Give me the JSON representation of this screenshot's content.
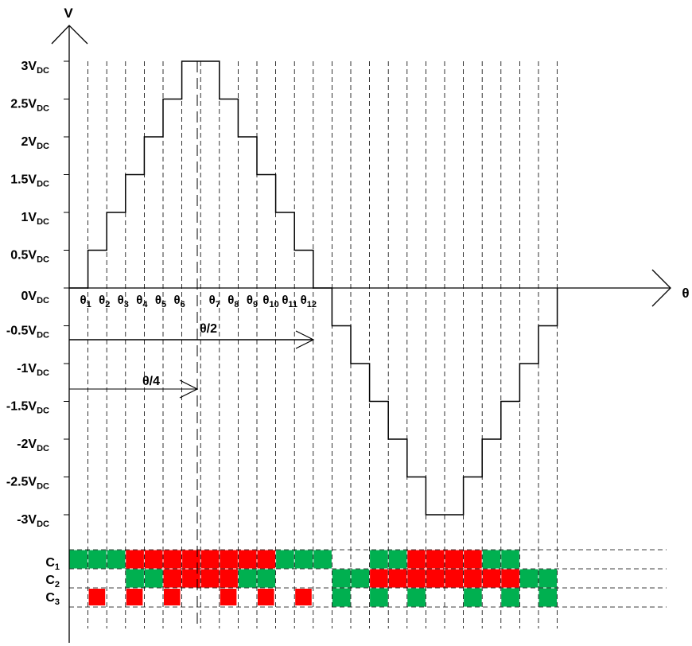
{
  "axis": {
    "y_label": "V",
    "x_label": "θ"
  },
  "levels": [
    {
      "main": "3V",
      "sub": "DC"
    },
    {
      "main": "2.5V",
      "sub": "DC"
    },
    {
      "main": "2V",
      "sub": "DC"
    },
    {
      "main": "1.5V",
      "sub": "DC"
    },
    {
      "main": "1V",
      "sub": "DC"
    },
    {
      "main": "0.5V",
      "sub": "DC"
    },
    {
      "main": "0V",
      "sub": "DC"
    },
    {
      "main": "-0.5V",
      "sub": "DC"
    },
    {
      "main": "-1V",
      "sub": "DC"
    },
    {
      "main": "-1.5V",
      "sub": "DC"
    },
    {
      "main": "-2V",
      "sub": "DC"
    },
    {
      "main": "-2.5V",
      "sub": "DC"
    },
    {
      "main": "-3V",
      "sub": "DC"
    }
  ],
  "angles": [
    {
      "main": "θ",
      "sub": "1"
    },
    {
      "main": "θ",
      "sub": "2"
    },
    {
      "main": "θ",
      "sub": "3"
    },
    {
      "main": "θ",
      "sub": "4"
    },
    {
      "main": "θ",
      "sub": "5"
    },
    {
      "main": "θ",
      "sub": "6"
    },
    {
      "main": "θ",
      "sub": "7"
    },
    {
      "main": "θ",
      "sub": "8"
    },
    {
      "main": "θ",
      "sub": "9"
    },
    {
      "main": "θ",
      "sub": "10"
    },
    {
      "main": "θ",
      "sub": "11"
    },
    {
      "main": "θ",
      "sub": "12"
    }
  ],
  "arrows": [
    "θ/2",
    "θ/4"
  ],
  "rows": [
    {
      "main": "C",
      "sub": "1"
    },
    {
      "main": "C",
      "sub": "2"
    },
    {
      "main": "C",
      "sub": "3"
    }
  ]
}
